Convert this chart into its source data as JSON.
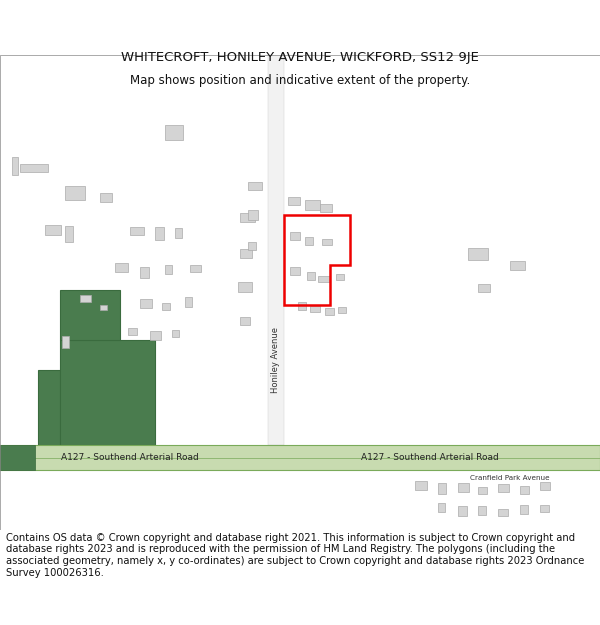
{
  "title_line1": "WHITECROFT, HONILEY AVENUE, WICKFORD, SS12 9JE",
  "title_line2": "Map shows position and indicative extent of the property.",
  "footer_text": "Contains OS data © Crown copyright and database right 2021. This information is subject to Crown copyright and database rights 2023 and is reproduced with the permission of HM Land Registry. The polygons (including the associated geometry, namely x, y co-ordinates) are subject to Crown copyright and database rights 2023 Ordnance Survey 100026316.",
  "bg_color": "#ffffff",
  "road_color": "#c8dbb0",
  "road_border": "#7aaa5a",
  "building_color": "#d4d4d4",
  "building_edge": "#aaaaaa",
  "green_fill": "#4a7c4e",
  "green_edge": "#3a6b3e",
  "red_plot_color": "#ee0000",
  "title_fontsize": 9.5,
  "subtitle_fontsize": 8.5,
  "footer_fontsize": 7.2,
  "road_label_fontsize": 6.5,
  "street_label_fontsize": 6.0
}
